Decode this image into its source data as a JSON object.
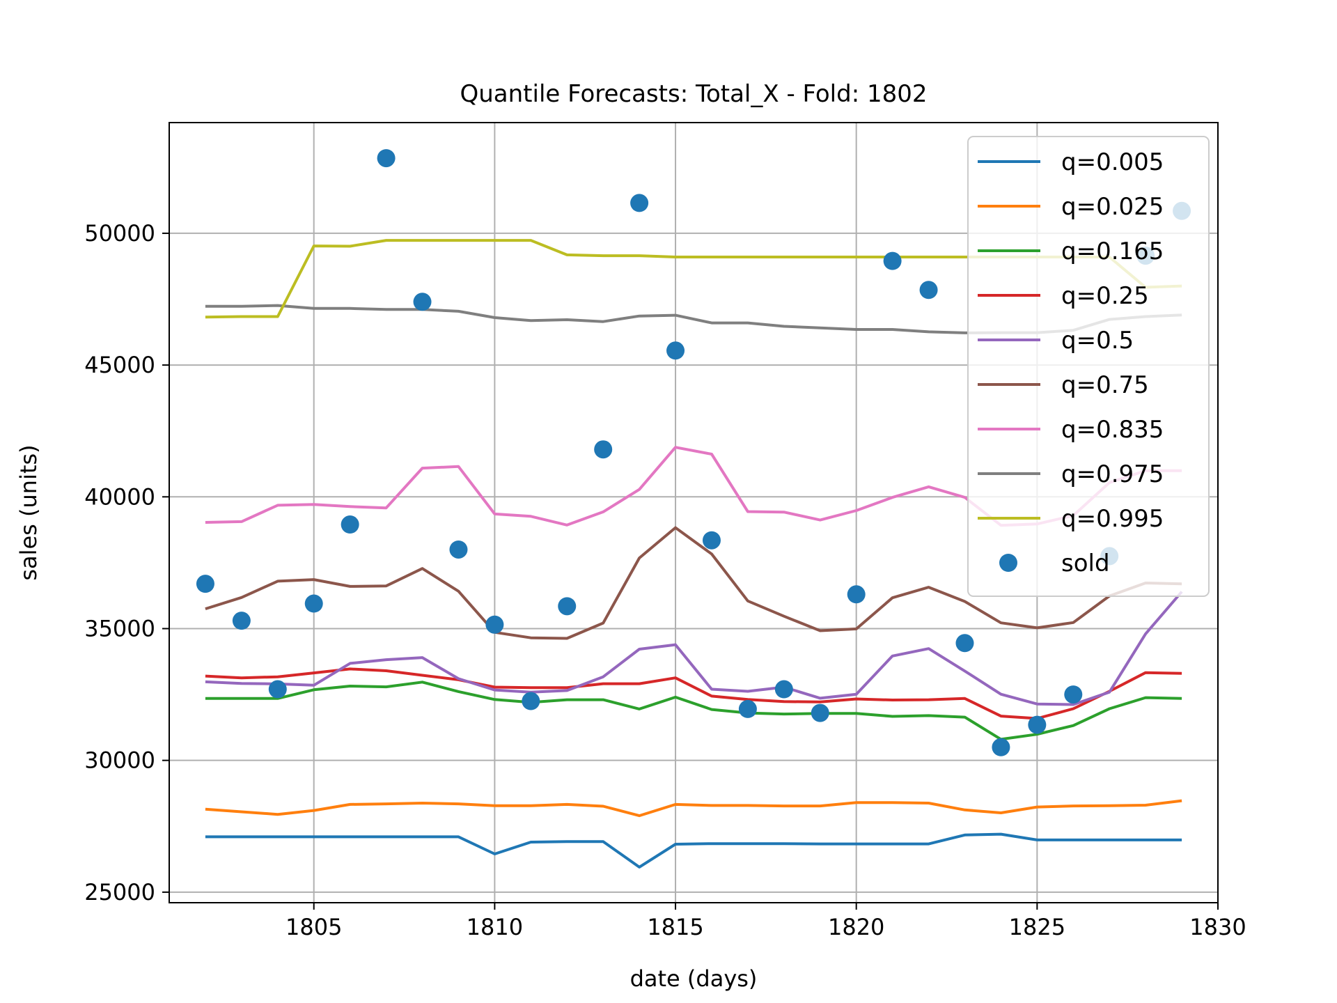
{
  "chart_data": {
    "type": "line",
    "title": "Quantile Forecasts: Total_X - Fold: 1802",
    "xlabel": "date (days)",
    "ylabel": "sales (units)",
    "xlim": [
      1801,
      1830
    ],
    "ylim": [
      24600,
      54200
    ],
    "xticks": [
      1805,
      1810,
      1815,
      1820,
      1825,
      1830
    ],
    "yticks": [
      25000,
      30000,
      35000,
      40000,
      45000,
      50000
    ],
    "grid": true,
    "legend_position": "top-right",
    "x": [
      1802,
      1803,
      1804,
      1805,
      1806,
      1807,
      1808,
      1809,
      1810,
      1811,
      1812,
      1813,
      1814,
      1815,
      1816,
      1817,
      1818,
      1819,
      1820,
      1821,
      1822,
      1823,
      1824,
      1825,
      1826,
      1827,
      1828,
      1829
    ],
    "series": [
      {
        "name": "q=0.005",
        "type": "line",
        "color": "#1f77b4",
        "values": [
          27100,
          27100,
          27100,
          27100,
          27100,
          27100,
          27100,
          27100,
          26450,
          26900,
          26920,
          26920,
          25950,
          26820,
          26840,
          26840,
          26840,
          26830,
          26830,
          26830,
          26830,
          27170,
          27200,
          26980,
          26980,
          26980,
          26980,
          26980
        ]
      },
      {
        "name": "q=0.025",
        "type": "line",
        "color": "#ff7f0e",
        "values": [
          28150,
          28050,
          27950,
          28100,
          28330,
          28350,
          28380,
          28350,
          28280,
          28280,
          28330,
          28260,
          27900,
          28330,
          28290,
          28290,
          28270,
          28270,
          28400,
          28400,
          28380,
          28120,
          28010,
          28230,
          28270,
          28280,
          28300,
          28470
        ]
      },
      {
        "name": "q=0.165",
        "type": "line",
        "color": "#2ca02c",
        "values": [
          32350,
          32350,
          32350,
          32680,
          32820,
          32790,
          32970,
          32610,
          32310,
          32200,
          32300,
          32300,
          31950,
          32400,
          31930,
          31800,
          31760,
          31780,
          31780,
          31670,
          31700,
          31640,
          30800,
          30990,
          31320,
          31960,
          32380,
          32350
        ]
      },
      {
        "name": "q=0.25",
        "type": "line",
        "color": "#d62728",
        "values": [
          33200,
          33130,
          33170,
          33320,
          33470,
          33400,
          33230,
          33060,
          32780,
          32760,
          32760,
          32910,
          32910,
          33130,
          32440,
          32310,
          32230,
          32220,
          32330,
          32290,
          32300,
          32350,
          31680,
          31590,
          31960,
          32620,
          33330,
          33300
        ]
      },
      {
        "name": "q=0.5",
        "type": "line",
        "color": "#9467bd",
        "values": [
          32980,
          32920,
          32900,
          32850,
          33680,
          33820,
          33900,
          33100,
          32670,
          32590,
          32650,
          33170,
          34220,
          34390,
          32700,
          32620,
          32780,
          32360,
          32510,
          33960,
          34240,
          33390,
          32510,
          32140,
          32120,
          32590,
          34800,
          36400
        ]
      },
      {
        "name": "q=0.75",
        "type": "line",
        "color": "#8c564b",
        "values": [
          35750,
          36180,
          36800,
          36860,
          36600,
          36620,
          37280,
          36420,
          34860,
          34650,
          34630,
          35210,
          37680,
          38830,
          37830,
          36050,
          35470,
          34920,
          34990,
          36170,
          36570,
          36030,
          35220,
          35030,
          35230,
          36240,
          36730,
          36700
        ]
      },
      {
        "name": "q=0.835",
        "type": "line",
        "color": "#e377c2",
        "values": [
          39030,
          39060,
          39680,
          39710,
          39630,
          39580,
          41090,
          41150,
          39350,
          39260,
          38930,
          39430,
          40280,
          41880,
          41620,
          39440,
          39420,
          39120,
          39480,
          39980,
          40380,
          39980,
          38920,
          38970,
          39290,
          40540,
          40990,
          40990
        ]
      },
      {
        "name": "q=0.975",
        "type": "line",
        "color": "#7f7f7f",
        "values": [
          47230,
          47230,
          47260,
          47150,
          47150,
          47110,
          47110,
          47040,
          46800,
          46690,
          46720,
          46650,
          46860,
          46890,
          46600,
          46600,
          46470,
          46410,
          46350,
          46350,
          46260,
          46220,
          46230,
          46230,
          46320,
          46730,
          46840,
          46900
        ]
      },
      {
        "name": "q=0.995",
        "type": "line",
        "color": "#bcbd22",
        "values": [
          46820,
          46840,
          46840,
          49520,
          49510,
          49730,
          49730,
          49730,
          49730,
          49730,
          49180,
          49150,
          49150,
          49100,
          49100,
          49100,
          49100,
          49100,
          49100,
          49100,
          49100,
          49100,
          49100,
          49100,
          49100,
          49100,
          47950,
          48000
        ]
      },
      {
        "name": "sold",
        "type": "scatter",
        "color": "#1f77b4",
        "values": [
          36700,
          35300,
          32700,
          35950,
          38950,
          52850,
          47400,
          38000,
          35150,
          32250,
          35850,
          41800,
          51150,
          45550,
          38350,
          31950,
          32700,
          31800,
          36300,
          48950,
          47850,
          34450,
          30500,
          31350,
          32500,
          37750,
          49150,
          50850
        ]
      }
    ]
  }
}
